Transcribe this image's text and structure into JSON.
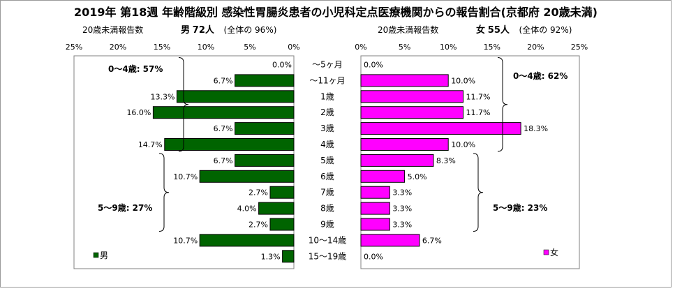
{
  "title": "2019年 第18週 年齢階級別 感染性胃腸炎患者の小児科定点医療機関からの報告割合(京都府 20歳未満)",
  "left_header": {
    "axis_title": "20歳未満報告数",
    "sex": "男",
    "count": "72人",
    "share_prefix": "(全体の",
    "share_value": "96%)"
  },
  "right_header": {
    "axis_title": "20歳未満報告数",
    "sex": "女",
    "count": "55人",
    "share_prefix": "(全体の",
    "share_value": "92%)"
  },
  "legend": {
    "male": "男",
    "female": "女"
  },
  "colors": {
    "male": "#006400",
    "female": "#ff00ff"
  },
  "chart_data": {
    "type": "bar",
    "orientation": "horizontal",
    "categories": [
      "～5ヶ月",
      "～11ヶ月",
      "1歳",
      "2歳",
      "3歳",
      "4歳",
      "5歳",
      "6歳",
      "7歳",
      "8歳",
      "9歳",
      "10～14歳",
      "15～19歳"
    ],
    "xlim": [
      0,
      25
    ],
    "ticks": [
      "0%",
      "5%",
      "10%",
      "15%",
      "20%",
      "25%"
    ],
    "series": [
      {
        "name": "男",
        "side": "left",
        "values": [
          0.0,
          6.7,
          13.3,
          16.0,
          6.7,
          14.7,
          6.7,
          10.7,
          2.7,
          4.0,
          2.7,
          10.7,
          1.3
        ],
        "labels": [
          "0.0%",
          "6.7%",
          "13.3%",
          "16.0%",
          "6.7%",
          "14.7%",
          "6.7%",
          "10.7%",
          "2.7%",
          "4.0%",
          "2.7%",
          "10.7%",
          "1.3%"
        ]
      },
      {
        "name": "女",
        "side": "right",
        "values": [
          0.0,
          10.0,
          11.7,
          11.7,
          18.3,
          10.0,
          8.3,
          5.0,
          3.3,
          3.3,
          3.3,
          6.7,
          0.0
        ],
        "labels": [
          "0.0%",
          "10.0%",
          "11.7%",
          "11.7%",
          "18.3%",
          "10.0%",
          "8.3%",
          "5.0%",
          "3.3%",
          "3.3%",
          "3.3%",
          "6.7%",
          "0.0%"
        ]
      }
    ],
    "annotations": {
      "male": [
        "0～4歳: 57%",
        "5～9歳: 27%"
      ],
      "female": [
        "0～4歳: 62%",
        "5～9歳: 23%"
      ]
    }
  }
}
